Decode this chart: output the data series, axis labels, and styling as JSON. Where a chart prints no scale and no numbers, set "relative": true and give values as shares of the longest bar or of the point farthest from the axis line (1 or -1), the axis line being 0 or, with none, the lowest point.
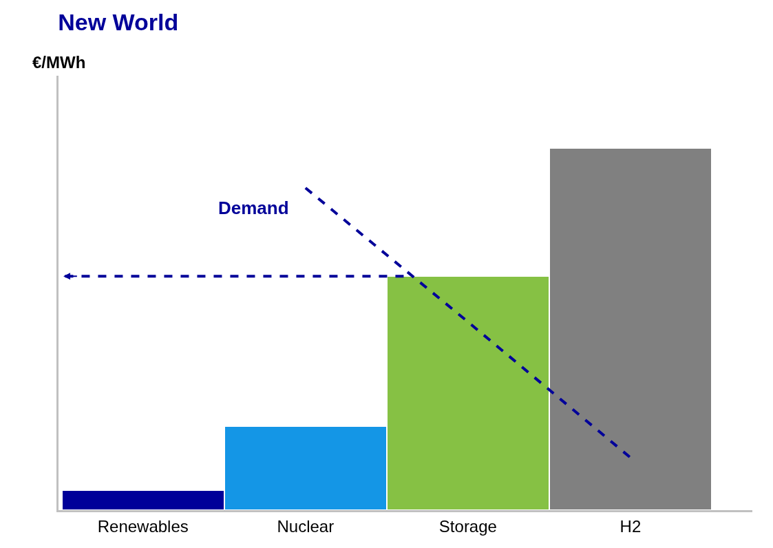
{
  "chart_data": {
    "type": "bar",
    "title": "New World",
    "ylabel": "€/MWh",
    "relative": true,
    "legend": false,
    "categories": [
      "Renewables",
      "Nuclear",
      "Storage",
      "H2"
    ],
    "values": [
      0.056,
      0.232,
      0.646,
      1.0
    ],
    "colors": [
      "#000099",
      "#1496e6",
      "#86c144",
      "#808080"
    ],
    "series": [
      {
        "name": "Demand",
        "type": "line",
        "color": "#000099",
        "line_style": "dashed",
        "values": [
          null,
          0.89,
          0.52,
          0.145
        ]
      }
    ],
    "ref_lines": [
      {
        "axis": "y",
        "value": 0.646,
        "color": "#000099",
        "line_style": "dashed"
      }
    ]
  }
}
